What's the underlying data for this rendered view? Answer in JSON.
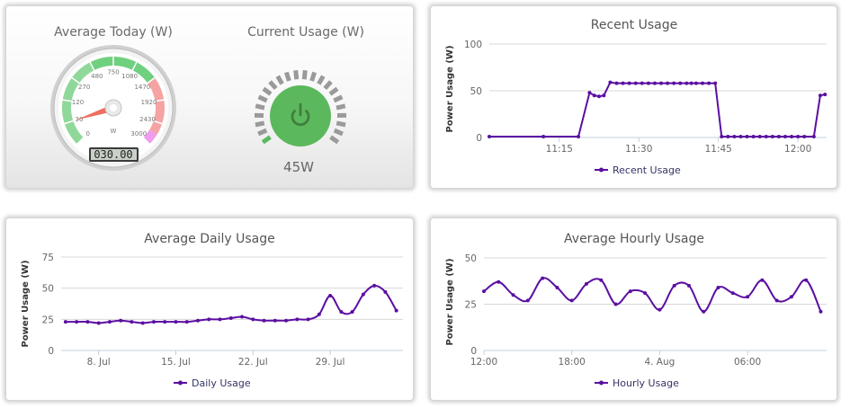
{
  "gauges": {
    "average_title": "Average Today (W)",
    "current_title": "Current Usage (W)",
    "dial_labels": [
      "0",
      "30",
      "120",
      "270",
      "480",
      "750",
      "1080",
      "1470",
      "1920",
      "2430",
      "3000"
    ],
    "dial_unit": "W",
    "average_readout": "030.00",
    "average_value": 30,
    "current_value_label": "45W",
    "current_value": 45,
    "colors": {
      "green_zone": "#8fd89a",
      "red_zone": "#f6a3a3",
      "pink_zone": "#f09cf0",
      "power_button": "#5cb85c",
      "needle": "#ef6f5f"
    }
  },
  "chart_data": [
    {
      "type": "line",
      "title": "Recent Usage",
      "ylabel": "Power Usage (W)",
      "xlabel": "",
      "ylim": [
        0,
        100
      ],
      "yticks": [
        "0",
        "50",
        "100"
      ],
      "xticks": [
        "11:15",
        "11:30",
        "11:45",
        "12:00"
      ],
      "x_unit": "minutes",
      "xlim": [
        11.03,
        12.09
      ],
      "xtick_values": [
        11.25,
        11.5,
        11.75,
        12.0
      ],
      "series": [
        {
          "name": "Recent Usage",
          "color": "#5b0fa1",
          "x": [
            11.03,
            11.2,
            11.31,
            11.345,
            11.36,
            11.375,
            11.39,
            11.41,
            11.43,
            11.45,
            11.47,
            11.49,
            11.51,
            11.53,
            11.55,
            11.57,
            11.59,
            11.61,
            11.63,
            11.65,
            11.665,
            11.68,
            11.7,
            11.72,
            11.74,
            11.76,
            11.78,
            11.8,
            11.82,
            11.84,
            11.86,
            11.88,
            11.9,
            11.92,
            11.94,
            11.96,
            11.98,
            12.0,
            12.02,
            12.05,
            12.07,
            12.085
          ],
          "values": [
            1,
            1,
            1,
            48,
            45,
            44,
            45,
            59,
            58,
            58,
            58,
            58,
            58,
            58,
            58,
            58,
            58,
            58,
            58,
            58,
            58,
            58,
            58,
            58,
            58,
            1,
            1,
            1,
            1,
            1,
            1,
            1,
            1,
            1,
            1,
            1,
            1,
            1,
            1,
            1,
            45,
            46
          ]
        }
      ]
    },
    {
      "type": "line",
      "title": "Average Daily Usage",
      "ylabel": "Power Usage (W)",
      "xlabel": "",
      "ylim": [
        0,
        75
      ],
      "yticks": [
        "0",
        "25",
        "50",
        "75"
      ],
      "xticks": [
        "8. Jul",
        "15. Jul",
        "22. Jul",
        "29. Jul"
      ],
      "xtick_values": [
        8,
        15,
        22,
        29
      ],
      "xlim": [
        4.6,
        35.6
      ],
      "series": [
        {
          "name": "Daily Usage",
          "color": "#5b0fa1",
          "x": [
            5,
            6,
            7,
            8,
            9,
            10,
            11,
            12,
            13,
            14,
            15,
            16,
            17,
            18,
            19,
            20,
            21,
            22,
            23,
            24,
            25,
            26,
            27,
            28,
            29,
            30,
            31,
            32,
            33,
            34,
            35
          ],
          "values": [
            23,
            23,
            23,
            22,
            23,
            24,
            23,
            22,
            23,
            23,
            23,
            23,
            24,
            25,
            25,
            26,
            27,
            25,
            24,
            24,
            24,
            25,
            25,
            29,
            44,
            31,
            31,
            45,
            52,
            47,
            32
          ]
        }
      ]
    },
    {
      "type": "line",
      "title": "Average Hourly Usage",
      "ylabel": "Power Usage (W)",
      "xlabel": "",
      "ylim": [
        0,
        50
      ],
      "yticks": [
        "0",
        "25",
        "50"
      ],
      "xticks": [
        "12:00",
        "18:00",
        "4. Aug",
        "06:00"
      ],
      "xtick_values": [
        0,
        6,
        12,
        18
      ],
      "xlim": [
        0,
        23.4
      ],
      "series": [
        {
          "name": "Hourly Usage",
          "color": "#5b0fa1",
          "x": [
            0,
            1,
            2,
            3,
            4,
            5,
            6,
            7,
            8,
            9,
            10,
            11,
            12,
            13,
            14,
            15,
            16,
            17,
            18,
            19,
            20,
            21,
            22,
            23
          ],
          "values": [
            32,
            37,
            30,
            27,
            39,
            34,
            27,
            36,
            38,
            25,
            32,
            31,
            22,
            35,
            35,
            21,
            34,
            31,
            29,
            38,
            27,
            29,
            38,
            21
          ]
        }
      ]
    }
  ]
}
